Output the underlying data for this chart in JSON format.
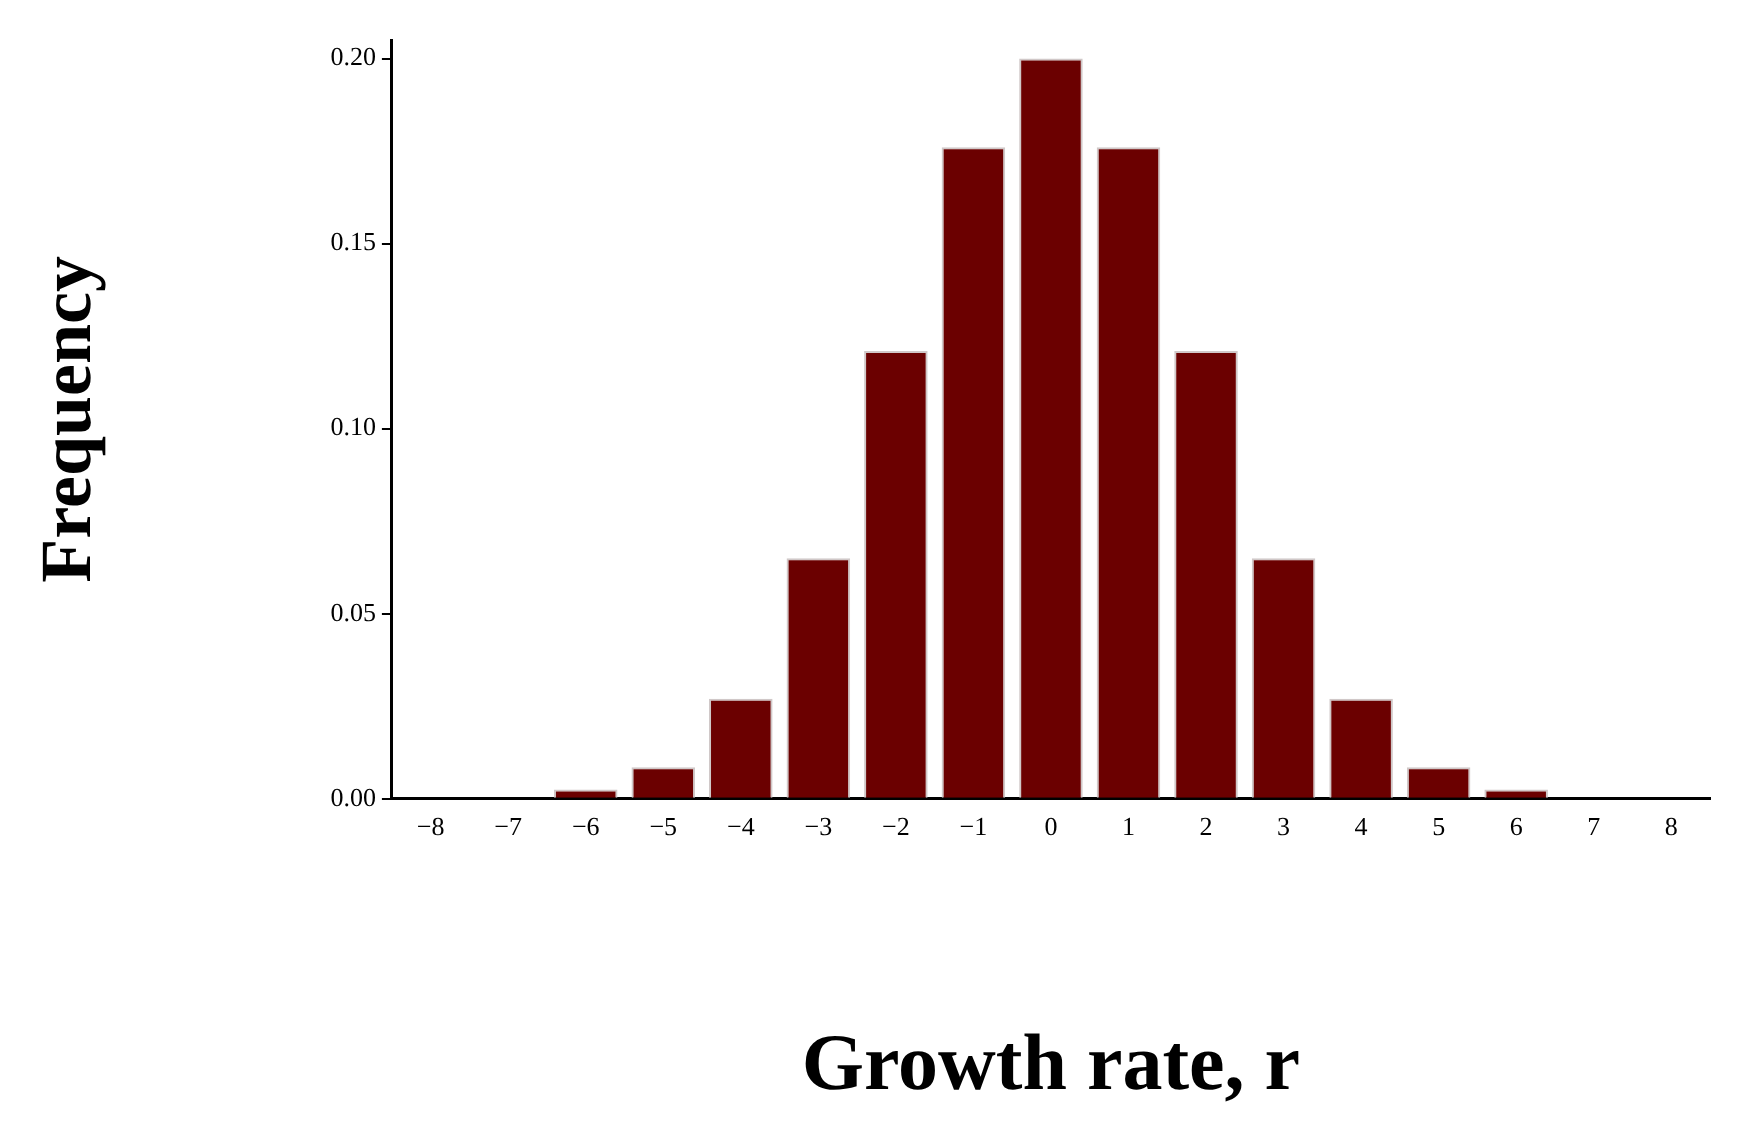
{
  "chart_data": {
    "type": "bar",
    "xlabel": "Growth rate, r",
    "ylabel": "Frequency",
    "categories": [
      "−8",
      "−7",
      "−6",
      "−5",
      "−4",
      "−3",
      "−2",
      "−1",
      "0",
      "1",
      "2",
      "3",
      "4",
      "5",
      "6",
      "7",
      "8"
    ],
    "values": [
      0,
      0,
      0.0025,
      0.0085,
      0.027,
      0.065,
      0.121,
      0.176,
      0.2,
      0.176,
      0.121,
      0.065,
      0.027,
      0.0085,
      0.0025,
      0,
      0
    ],
    "color": "#6b0000",
    "ylim": [
      0,
      0.205
    ],
    "yticks": [
      {
        "value": 0,
        "label": "0.00"
      },
      {
        "value": 0.05,
        "label": "0.05"
      },
      {
        "value": 0.1,
        "label": "0.10"
      },
      {
        "value": 0.15,
        "label": "0.15"
      },
      {
        "value": 0.2,
        "label": "0.20"
      }
    ],
    "grid": false,
    "legend": false
  }
}
